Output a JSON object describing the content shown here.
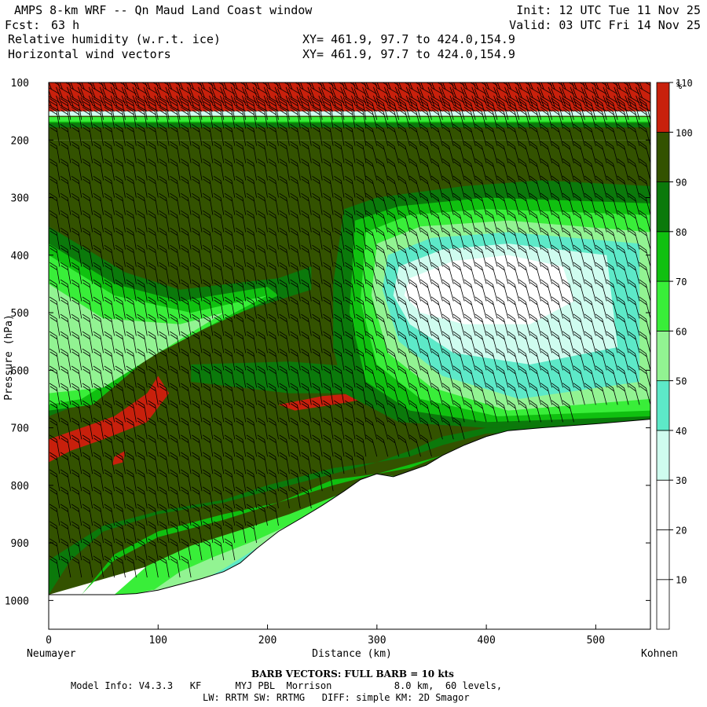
{
  "header": {
    "title": "AMPS 8-km WRF -- Qn Maud Land Coast window",
    "fcst_label": "Fcst:",
    "fcst_value": "63 h",
    "init": "Init: 12 UTC Tue 11 Nov 25",
    "valid": "Valid: 03 UTC Fri 14 Nov 25",
    "field1": "Relative humidity (w.r.t. ice)",
    "field2": "Horizontal wind vectors",
    "xy1": "XY= 461.9, 97.7 to 424.0,154.9",
    "xy2": "XY= 461.9, 97.7 to 424.0,154.9"
  },
  "chart_data": {
    "type": "heatmap",
    "title": "Relative humidity (w.r.t. ice)",
    "xlabel": "Distance (km)",
    "ylabel": "Pressure (hPa)",
    "xlim": [
      0,
      550
    ],
    "ylim": [
      1050,
      100
    ],
    "x_ticks": [
      0,
      100,
      200,
      300,
      400,
      500
    ],
    "y_ticks": [
      100,
      200,
      300,
      400,
      500,
      600,
      700,
      800,
      900,
      1000
    ],
    "x_end_labels": {
      "left": "Neumayer",
      "right": "Kohnen"
    },
    "colorbar": {
      "unit": "%",
      "levels": [
        10,
        20,
        30,
        40,
        50,
        60,
        70,
        80,
        90,
        100,
        110
      ],
      "colors": [
        "#ffffff",
        "#ffffff",
        "#ffffff",
        "#cffcef",
        "#5de9c8",
        "#92f392",
        "#39ee39",
        "#10c010",
        "#0b790b",
        "#335200",
        "#c8200c"
      ]
    },
    "terrain_profile": [
      [
        0,
        990
      ],
      [
        20,
        990
      ],
      [
        40,
        990
      ],
      [
        60,
        990
      ],
      [
        80,
        988
      ],
      [
        100,
        982
      ],
      [
        120,
        972
      ],
      [
        140,
        962
      ],
      [
        160,
        950
      ],
      [
        175,
        935
      ],
      [
        190,
        910
      ],
      [
        210,
        880
      ],
      [
        230,
        858
      ],
      [
        250,
        835
      ],
      [
        270,
        810
      ],
      [
        285,
        790
      ],
      [
        300,
        780
      ],
      [
        315,
        785
      ],
      [
        330,
        775
      ],
      [
        345,
        765
      ],
      [
        360,
        748
      ],
      [
        380,
        730
      ],
      [
        400,
        715
      ],
      [
        420,
        705
      ],
      [
        450,
        700
      ],
      [
        500,
        693
      ],
      [
        550,
        685
      ]
    ],
    "regions": [
      {
        "level": 100,
        "points": [
          [
            0,
            100
          ],
          [
            550,
            100
          ],
          [
            550,
            200
          ],
          [
            0,
            200
          ]
        ]
      },
      {
        "level": 90,
        "points": [
          [
            0,
            160
          ],
          [
            550,
            160
          ],
          [
            550,
            178
          ],
          [
            0,
            178
          ]
        ]
      },
      {
        "level": 80,
        "points": [
          [
            0,
            160
          ],
          [
            550,
            160
          ],
          [
            550,
            170
          ],
          [
            0,
            170
          ]
        ]
      },
      {
        "level": 70,
        "points": [
          [
            0,
            160
          ],
          [
            550,
            160
          ],
          [
            550,
            168
          ],
          [
            0,
            168
          ]
        ]
      },
      {
        "level": 40,
        "points": [
          [
            0,
            100
          ],
          [
            550,
            100
          ],
          [
            550,
            158
          ],
          [
            0,
            158
          ]
        ]
      },
      {
        "level": 110,
        "points": [
          [
            0,
            100
          ],
          [
            550,
            100
          ],
          [
            550,
            150
          ],
          [
            0,
            150
          ]
        ]
      },
      {
        "level": 100,
        "points": [
          [
            0,
            200
          ],
          [
            550,
            200
          ],
          [
            550,
            690
          ],
          [
            0,
            990
          ]
        ]
      },
      {
        "level": 90,
        "points": [
          [
            0,
            350
          ],
          [
            70,
            430
          ],
          [
            120,
            460
          ],
          [
            210,
            440
          ],
          [
            240,
            420
          ],
          [
            240,
            460
          ],
          [
            140,
            520
          ],
          [
            90,
            570
          ],
          [
            40,
            650
          ],
          [
            0,
            680
          ]
        ]
      },
      {
        "level": 80,
        "points": [
          [
            0,
            380
          ],
          [
            60,
            450
          ],
          [
            120,
            480
          ],
          [
            200,
            455
          ],
          [
            210,
            470
          ],
          [
            140,
            530
          ],
          [
            90,
            580
          ],
          [
            40,
            660
          ],
          [
            0,
            670
          ]
        ]
      },
      {
        "level": 70,
        "points": [
          [
            0,
            400
          ],
          [
            60,
            470
          ],
          [
            130,
            500
          ],
          [
            200,
            470
          ],
          [
            130,
            540
          ],
          [
            80,
            590
          ],
          [
            30,
            650
          ],
          [
            0,
            660
          ]
        ]
      },
      {
        "level": 60,
        "points": [
          [
            0,
            450
          ],
          [
            50,
            510
          ],
          [
            120,
            520
          ],
          [
            160,
            500
          ],
          [
            100,
            570
          ],
          [
            50,
            630
          ],
          [
            0,
            640
          ]
        ]
      },
      {
        "level": 90,
        "points": [
          [
            130,
            590
          ],
          [
            220,
            585
          ],
          [
            320,
            600
          ],
          [
            330,
            640
          ],
          [
            220,
            640
          ],
          [
            130,
            620
          ]
        ]
      },
      {
        "level": 110,
        "points": [
          [
            0,
            720
          ],
          [
            60,
            680
          ],
          [
            90,
            640
          ],
          [
            100,
            610
          ],
          [
            110,
            640
          ],
          [
            90,
            690
          ],
          [
            50,
            720
          ],
          [
            20,
            740
          ],
          [
            0,
            760
          ]
        ]
      },
      {
        "level": 110,
        "points": [
          [
            60,
            750
          ],
          [
            70,
            740
          ],
          [
            68,
            760
          ],
          [
            58,
            765
          ]
        ]
      },
      {
        "level": 110,
        "points": [
          [
            210,
            660
          ],
          [
            250,
            645
          ],
          [
            280,
            640
          ],
          [
            290,
            650
          ],
          [
            260,
            660
          ],
          [
            225,
            670
          ]
        ]
      },
      {
        "level": 90,
        "points": [
          [
            270,
            320
          ],
          [
            300,
            300
          ],
          [
            380,
            280
          ],
          [
            450,
            270
          ],
          [
            550,
            280
          ],
          [
            550,
            690
          ],
          [
            400,
            700
          ],
          [
            320,
            690
          ],
          [
            270,
            640
          ],
          [
            260,
            560
          ],
          [
            260,
            450
          ]
        ]
      },
      {
        "level": 80,
        "points": [
          [
            280,
            340
          ],
          [
            320,
            315
          ],
          [
            400,
            300
          ],
          [
            550,
            310
          ],
          [
            550,
            680
          ],
          [
            400,
            690
          ],
          [
            330,
            670
          ],
          [
            290,
            620
          ],
          [
            275,
            500
          ]
        ]
      },
      {
        "level": 70,
        "points": [
          [
            290,
            360
          ],
          [
            330,
            330
          ],
          [
            400,
            320
          ],
          [
            550,
            330
          ],
          [
            550,
            670
          ],
          [
            410,
            680
          ],
          [
            340,
            650
          ],
          [
            300,
            590
          ],
          [
            285,
            480
          ]
        ]
      },
      {
        "level": 60,
        "points": [
          [
            300,
            380
          ],
          [
            340,
            350
          ],
          [
            420,
            340
          ],
          [
            550,
            360
          ],
          [
            550,
            650
          ],
          [
            420,
            670
          ],
          [
            350,
            630
          ],
          [
            310,
            570
          ],
          [
            295,
            470
          ]
        ]
      },
      {
        "level": 50,
        "points": [
          [
            310,
            400
          ],
          [
            350,
            370
          ],
          [
            420,
            360
          ],
          [
            540,
            380
          ],
          [
            540,
            620
          ],
          [
            430,
            650
          ],
          [
            360,
            610
          ],
          [
            320,
            550
          ],
          [
            305,
            460
          ]
        ]
      },
      {
        "level": 40,
        "points": [
          [
            320,
            420
          ],
          [
            360,
            390
          ],
          [
            420,
            380
          ],
          [
            510,
            400
          ],
          [
            520,
            560
          ],
          [
            440,
            590
          ],
          [
            370,
            570
          ],
          [
            330,
            520
          ],
          [
            315,
            470
          ]
        ]
      },
      {
        "level": 30,
        "points": [
          [
            330,
            440
          ],
          [
            370,
            410
          ],
          [
            420,
            400
          ],
          [
            470,
            420
          ],
          [
            480,
            480
          ],
          [
            440,
            520
          ],
          [
            380,
            520
          ],
          [
            340,
            500
          ],
          [
            325,
            470
          ]
        ]
      },
      {
        "level": 20,
        "points": [
          [
            340,
            460
          ],
          [
            370,
            430
          ],
          [
            410,
            425
          ],
          [
            440,
            450
          ],
          [
            430,
            490
          ],
          [
            390,
            500
          ],
          [
            355,
            490
          ]
        ]
      },
      {
        "level": 90,
        "points": [
          [
            0,
            990
          ],
          [
            20,
            930
          ],
          [
            50,
            880
          ],
          [
            100,
            850
          ],
          [
            160,
            830
          ],
          [
            200,
            810
          ],
          [
            260,
            780
          ],
          [
            300,
            760
          ],
          [
            330,
            750
          ],
          [
            360,
            730
          ],
          [
            400,
            710
          ],
          [
            550,
            700
          ],
          [
            550,
            690
          ],
          [
            400,
            700
          ],
          [
            360,
            715
          ],
          [
            330,
            740
          ],
          [
            300,
            760
          ],
          [
            260,
            770
          ],
          [
            200,
            800
          ],
          [
            160,
            825
          ],
          [
            100,
            845
          ],
          [
            50,
            870
          ],
          [
            0,
            930
          ]
        ]
      },
      {
        "level": 80,
        "points": [
          [
            30,
            990
          ],
          [
            60,
            930
          ],
          [
            100,
            890
          ],
          [
            160,
            860
          ],
          [
            210,
            830
          ],
          [
            260,
            800
          ],
          [
            300,
            780
          ],
          [
            330,
            770
          ],
          [
            360,
            748
          ],
          [
            300,
            780
          ],
          [
            260,
            790
          ],
          [
            210,
            830
          ],
          [
            160,
            850
          ],
          [
            100,
            880
          ],
          [
            60,
            920
          ]
        ]
      },
      {
        "level": 70,
        "points": [
          [
            60,
            990
          ],
          [
            90,
            940
          ],
          [
            130,
            905
          ],
          [
            180,
            875
          ],
          [
            220,
            850
          ],
          [
            260,
            820
          ],
          [
            300,
            790
          ],
          [
            320,
            785
          ],
          [
            300,
            780
          ],
          [
            270,
            810
          ],
          [
            230,
            858
          ],
          [
            190,
            910
          ],
          [
            160,
            950
          ],
          [
            120,
            972
          ],
          [
            80,
            988
          ]
        ]
      },
      {
        "level": 60,
        "points": [
          [
            90,
            990
          ],
          [
            120,
            950
          ],
          [
            150,
            925
          ],
          [
            190,
            895
          ],
          [
            230,
            860
          ],
          [
            250,
            850
          ],
          [
            250,
            835
          ],
          [
            230,
            858
          ],
          [
            210,
            880
          ],
          [
            190,
            910
          ],
          [
            175,
            935
          ],
          [
            160,
            950
          ],
          [
            140,
            962
          ],
          [
            120,
            972
          ],
          [
            100,
            982
          ]
        ]
      },
      {
        "level": 50,
        "points": [
          [
            130,
            975
          ],
          [
            160,
            945
          ],
          [
            185,
            915
          ],
          [
            210,
            885
          ],
          [
            220,
            875
          ],
          [
            210,
            880
          ],
          [
            190,
            910
          ],
          [
            175,
            935
          ],
          [
            160,
            950
          ],
          [
            140,
            962
          ]
        ]
      }
    ],
    "barb_columns_km": [
      0,
      10,
      20,
      30,
      40,
      50,
      60,
      70,
      80,
      90,
      100,
      110,
      120,
      130,
      140,
      150,
      160,
      170,
      180,
      190,
      200,
      210,
      220,
      230,
      240,
      250,
      260,
      270,
      280,
      290,
      300,
      310,
      320,
      330,
      340,
      350,
      360,
      370,
      380,
      390,
      400,
      410,
      420,
      430,
      440,
      450,
      460,
      470,
      480,
      490,
      500,
      510,
      520,
      530,
      540,
      550
    ],
    "barb_levels_hPa": [
      105,
      120,
      135,
      150,
      165,
      180,
      210,
      240,
      270,
      300,
      330,
      360,
      390,
      420,
      450,
      480,
      510,
      540,
      570,
      600,
      630,
      660,
      690,
      720,
      750,
      780,
      810,
      840,
      870,
      900,
      930,
      960
    ]
  },
  "footer": {
    "barb_note": "BARB VECTORS: FULL BARB = 10 kts",
    "model_line1": "Model Info: V4.3.3   KF      MYJ PBL  Morrison           8.0 km,  60 levels,",
    "model_line2": "LW: RRTM SW: RRTMG   DIFF: simple KM: 2D Smagor"
  }
}
